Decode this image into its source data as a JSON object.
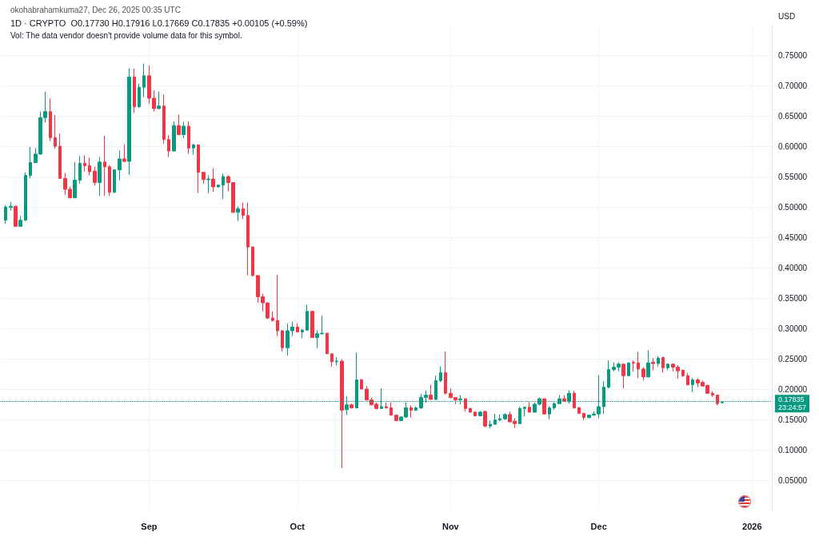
{
  "chart_data": {
    "type": "candlestick",
    "title": "1D · CRYPTO  O0.17730 H0.17916 L0.17669 C0.17835 +0.00105 (+0.59%)",
    "subtitle": "Vol: The data vendor doesn't provide volume data for this symbol.",
    "annotations": [
      "okohabrahamkuma27, Dec 26, 2025 00:35 UTC"
    ],
    "ylabel": "USD",
    "x": [
      "2025-08-03",
      "2025-08-04",
      "2025-08-05",
      "2025-08-06",
      "2025-08-07",
      "2025-08-08",
      "2025-08-09",
      "2025-08-10",
      "2025-08-11",
      "2025-08-12",
      "2025-08-13",
      "2025-08-14",
      "2025-08-15",
      "2025-08-16",
      "2025-08-17",
      "2025-08-18",
      "2025-08-19",
      "2025-08-20",
      "2025-08-21",
      "2025-08-22",
      "2025-08-23",
      "2025-08-24",
      "2025-08-25",
      "2025-08-26",
      "2025-08-27",
      "2025-08-28",
      "2025-08-29",
      "2025-08-30",
      "2025-08-31",
      "2025-09-01",
      "2025-09-02",
      "2025-09-03",
      "2025-09-04",
      "2025-09-05",
      "2025-09-06",
      "2025-09-07",
      "2025-09-08",
      "2025-09-09",
      "2025-09-10",
      "2025-09-11",
      "2025-09-12",
      "2025-09-13",
      "2025-09-14",
      "2025-09-15",
      "2025-09-16",
      "2025-09-17",
      "2025-09-18",
      "2025-09-19",
      "2025-09-20",
      "2025-09-21",
      "2025-09-22",
      "2025-09-23",
      "2025-09-24",
      "2025-09-25",
      "2025-09-26",
      "2025-09-27",
      "2025-09-28",
      "2025-09-29",
      "2025-09-30",
      "2025-10-01",
      "2025-10-02",
      "2025-10-03",
      "2025-10-04",
      "2025-10-05",
      "2025-10-06",
      "2025-10-07",
      "2025-10-08",
      "2025-10-09",
      "2025-10-10",
      "2025-10-11",
      "2025-10-12",
      "2025-10-13",
      "2025-10-14",
      "2025-10-15",
      "2025-10-16",
      "2025-10-17",
      "2025-10-18",
      "2025-10-19",
      "2025-10-20",
      "2025-10-21",
      "2025-10-22",
      "2025-10-23",
      "2025-10-24",
      "2025-10-25",
      "2025-10-26",
      "2025-10-27",
      "2025-10-28",
      "2025-10-29",
      "2025-10-30",
      "2025-10-31",
      "2025-11-01",
      "2025-11-02",
      "2025-11-03",
      "2025-11-04",
      "2025-11-05",
      "2025-11-06",
      "2025-11-07",
      "2025-11-08",
      "2025-11-09",
      "2025-11-10",
      "2025-11-11",
      "2025-11-12",
      "2025-11-13",
      "2025-11-14",
      "2025-11-15",
      "2025-11-16",
      "2025-11-17",
      "2025-11-18",
      "2025-11-19",
      "2025-11-20",
      "2025-11-21",
      "2025-11-22",
      "2025-11-23",
      "2025-11-24",
      "2025-11-25",
      "2025-11-26",
      "2025-11-27",
      "2025-11-28",
      "2025-11-29",
      "2025-11-30",
      "2025-12-01",
      "2025-12-02",
      "2025-12-03",
      "2025-12-04",
      "2025-12-05",
      "2025-12-06",
      "2025-12-07",
      "2025-12-08",
      "2025-12-09",
      "2025-12-10",
      "2025-12-11",
      "2025-12-12",
      "2025-12-13",
      "2025-12-14",
      "2025-12-15",
      "2025-12-16",
      "2025-12-17",
      "2025-12-18",
      "2025-12-19",
      "2025-12-20",
      "2025-12-21",
      "2025-12-22",
      "2025-12-23",
      "2025-12-24",
      "2025-12-25",
      "2025-12-26"
    ],
    "ohlc": [
      [
        0.478,
        0.503,
        0.472,
        0.5
      ],
      [
        0.499,
        0.508,
        0.494,
        0.501
      ],
      [
        0.501,
        0.502,
        0.467,
        0.468
      ],
      [
        0.468,
        0.485,
        0.467,
        0.478
      ],
      [
        0.478,
        0.557,
        0.477,
        0.552
      ],
      [
        0.552,
        0.599,
        0.547,
        0.573
      ],
      [
        0.573,
        0.597,
        0.572,
        0.587
      ],
      [
        0.587,
        0.657,
        0.586,
        0.647
      ],
      [
        0.647,
        0.69,
        0.639,
        0.657
      ],
      [
        0.657,
        0.679,
        0.608,
        0.614
      ],
      [
        0.614,
        0.651,
        0.596,
        0.6
      ],
      [
        0.6,
        0.621,
        0.546,
        0.547
      ],
      [
        0.547,
        0.556,
        0.52,
        0.529
      ],
      [
        0.529,
        0.533,
        0.514,
        0.515
      ],
      [
        0.515,
        0.574,
        0.514,
        0.544
      ],
      [
        0.544,
        0.584,
        0.538,
        0.572
      ],
      [
        0.572,
        0.585,
        0.558,
        0.568
      ],
      [
        0.568,
        0.581,
        0.552,
        0.558
      ],
      [
        0.559,
        0.566,
        0.535,
        0.54
      ],
      [
        0.54,
        0.582,
        0.518,
        0.574
      ],
      [
        0.574,
        0.617,
        0.518,
        0.566
      ],
      [
        0.566,
        0.569,
        0.518,
        0.524
      ],
      [
        0.524,
        0.562,
        0.523,
        0.561
      ],
      [
        0.561,
        0.593,
        0.544,
        0.579
      ],
      [
        0.579,
        0.603,
        0.574,
        0.575
      ],
      [
        0.575,
        0.728,
        0.553,
        0.714
      ],
      [
        0.714,
        0.728,
        0.655,
        0.665
      ],
      [
        0.665,
        0.703,
        0.663,
        0.697
      ],
      [
        0.697,
        0.736,
        0.681,
        0.716
      ],
      [
        0.716,
        0.733,
        0.67,
        0.679
      ],
      [
        0.679,
        0.692,
        0.657,
        0.662
      ],
      [
        0.662,
        0.69,
        0.661,
        0.666
      ],
      [
        0.666,
        0.685,
        0.604,
        0.611
      ],
      [
        0.611,
        0.618,
        0.582,
        0.592
      ],
      [
        0.592,
        0.641,
        0.591,
        0.634
      ],
      [
        0.634,
        0.652,
        0.619,
        0.619
      ],
      [
        0.619,
        0.64,
        0.613,
        0.633
      ],
      [
        0.633,
        0.641,
        0.587,
        0.597
      ],
      [
        0.597,
        0.604,
        0.586,
        0.602
      ],
      [
        0.602,
        0.602,
        0.523,
        0.557
      ],
      [
        0.557,
        0.557,
        0.538,
        0.545
      ],
      [
        0.545,
        0.552,
        0.523,
        0.546
      ],
      [
        0.546,
        0.564,
        0.525,
        0.533
      ],
      [
        0.533,
        0.536,
        0.532,
        0.536
      ],
      [
        0.536,
        0.555,
        0.513,
        0.55
      ],
      [
        0.55,
        0.552,
        0.526,
        0.54
      ],
      [
        0.54,
        0.54,
        0.49,
        0.491
      ],
      [
        0.491,
        0.501,
        0.477,
        0.497
      ],
      [
        0.497,
        0.507,
        0.48,
        0.486
      ],
      [
        0.486,
        0.507,
        0.387,
        0.434
      ],
      [
        0.434,
        0.435,
        0.385,
        0.387
      ],
      [
        0.387,
        0.387,
        0.342,
        0.352
      ],
      [
        0.352,
        0.357,
        0.328,
        0.342
      ],
      [
        0.342,
        0.342,
        0.315,
        0.317
      ],
      [
        0.317,
        0.328,
        0.311,
        0.313
      ],
      [
        0.313,
        0.388,
        0.287,
        0.296
      ],
      [
        0.296,
        0.297,
        0.262,
        0.268
      ],
      [
        0.268,
        0.308,
        0.255,
        0.296
      ],
      [
        0.296,
        0.311,
        0.287,
        0.302
      ],
      [
        0.302,
        0.308,
        0.293,
        0.294
      ],
      [
        0.294,
        0.299,
        0.284,
        0.297
      ],
      [
        0.297,
        0.339,
        0.296,
        0.328
      ],
      [
        0.328,
        0.328,
        0.284,
        0.285
      ],
      [
        0.285,
        0.297,
        0.267,
        0.291
      ],
      [
        0.291,
        0.321,
        0.29,
        0.292
      ],
      [
        0.292,
        0.292,
        0.258,
        0.258
      ],
      [
        0.258,
        0.259,
        0.237,
        0.245
      ],
      [
        0.245,
        0.252,
        0.239,
        0.246
      ],
      [
        0.246,
        0.249,
        0.07,
        0.165
      ],
      [
        0.166,
        0.188,
        0.157,
        0.174
      ],
      [
        0.174,
        0.176,
        0.168,
        0.169
      ],
      [
        0.169,
        0.26,
        0.168,
        0.215
      ],
      [
        0.215,
        0.217,
        0.2,
        0.2
      ],
      [
        0.2,
        0.205,
        0.181,
        0.182
      ],
      [
        0.182,
        0.186,
        0.173,
        0.174
      ],
      [
        0.175,
        0.178,
        0.166,
        0.168
      ],
      [
        0.168,
        0.201,
        0.167,
        0.171
      ],
      [
        0.171,
        0.178,
        0.168,
        0.169
      ],
      [
        0.169,
        0.178,
        0.156,
        0.157
      ],
      [
        0.157,
        0.157,
        0.147,
        0.148
      ],
      [
        0.148,
        0.155,
        0.147,
        0.154
      ],
      [
        0.154,
        0.178,
        0.152,
        0.169
      ],
      [
        0.169,
        0.173,
        0.153,
        0.165
      ],
      [
        0.165,
        0.171,
        0.164,
        0.169
      ],
      [
        0.169,
        0.192,
        0.167,
        0.186
      ],
      [
        0.186,
        0.198,
        0.178,
        0.19
      ],
      [
        0.19,
        0.207,
        0.182,
        0.183
      ],
      [
        0.183,
        0.222,
        0.182,
        0.214
      ],
      [
        0.214,
        0.237,
        0.211,
        0.227
      ],
      [
        0.227,
        0.262,
        0.191,
        0.193
      ],
      [
        0.193,
        0.201,
        0.185,
        0.186
      ],
      [
        0.186,
        0.186,
        0.175,
        0.182
      ],
      [
        0.182,
        0.19,
        0.175,
        0.184
      ],
      [
        0.184,
        0.184,
        0.163,
        0.168
      ],
      [
        0.168,
        0.169,
        0.161,
        0.162
      ],
      [
        0.162,
        0.163,
        0.155,
        0.156
      ],
      [
        0.156,
        0.164,
        0.155,
        0.162
      ],
      [
        0.163,
        0.164,
        0.137,
        0.139
      ],
      [
        0.139,
        0.148,
        0.135,
        0.142
      ],
      [
        0.142,
        0.159,
        0.141,
        0.149
      ],
      [
        0.149,
        0.158,
        0.147,
        0.151
      ],
      [
        0.151,
        0.16,
        0.149,
        0.158
      ],
      [
        0.158,
        0.163,
        0.145,
        0.146
      ],
      [
        0.147,
        0.152,
        0.136,
        0.143
      ],
      [
        0.143,
        0.171,
        0.143,
        0.168
      ],
      [
        0.168,
        0.171,
        0.155,
        0.17
      ],
      [
        0.17,
        0.179,
        0.161,
        0.162
      ],
      [
        0.162,
        0.178,
        0.161,
        0.175
      ],
      [
        0.175,
        0.186,
        0.173,
        0.184
      ],
      [
        0.184,
        0.184,
        0.158,
        0.159
      ],
      [
        0.159,
        0.172,
        0.15,
        0.169
      ],
      [
        0.169,
        0.178,
        0.166,
        0.176
      ],
      [
        0.176,
        0.19,
        0.175,
        0.184
      ],
      [
        0.184,
        0.19,
        0.18,
        0.18
      ],
      [
        0.18,
        0.198,
        0.176,
        0.193
      ],
      [
        0.193,
        0.197,
        0.168,
        0.169
      ],
      [
        0.169,
        0.171,
        0.159,
        0.16
      ],
      [
        0.16,
        0.161,
        0.149,
        0.153
      ],
      [
        0.153,
        0.157,
        0.152,
        0.157
      ],
      [
        0.157,
        0.163,
        0.156,
        0.159
      ],
      [
        0.159,
        0.223,
        0.152,
        0.171
      ],
      [
        0.171,
        0.213,
        0.159,
        0.203
      ],
      [
        0.203,
        0.247,
        0.201,
        0.232
      ],
      [
        0.232,
        0.244,
        0.229,
        0.236
      ],
      [
        0.236,
        0.244,
        0.229,
        0.241
      ],
      [
        0.241,
        0.241,
        0.201,
        0.222
      ],
      [
        0.222,
        0.244,
        0.222,
        0.243
      ],
      [
        0.244,
        0.247,
        0.229,
        0.243
      ],
      [
        0.243,
        0.261,
        0.218,
        0.233
      ],
      [
        0.233,
        0.236,
        0.214,
        0.22
      ],
      [
        0.22,
        0.264,
        0.219,
        0.243
      ],
      [
        0.244,
        0.251,
        0.231,
        0.242
      ],
      [
        0.242,
        0.254,
        0.237,
        0.251
      ],
      [
        0.252,
        0.253,
        0.227,
        0.235
      ],
      [
        0.235,
        0.242,
        0.231,
        0.241
      ],
      [
        0.241,
        0.242,
        0.229,
        0.236
      ],
      [
        0.236,
        0.239,
        0.217,
        0.23
      ],
      [
        0.231,
        0.232,
        0.22,
        0.222
      ],
      [
        0.222,
        0.226,
        0.206,
        0.207
      ],
      [
        0.207,
        0.218,
        0.195,
        0.215
      ],
      [
        0.215,
        0.218,
        0.203,
        0.21
      ],
      [
        0.211,
        0.214,
        0.204,
        0.205
      ],
      [
        0.206,
        0.207,
        0.192,
        0.193
      ],
      [
        0.193,
        0.196,
        0.187,
        0.19
      ],
      [
        0.19,
        0.191,
        0.173,
        0.176
      ],
      [
        0.1773,
        0.17916,
        0.17669,
        0.17835
      ]
    ],
    "colors": [
      "#089981",
      "#089981",
      "#f23645",
      "#089981",
      "#089981",
      "#089981",
      "#089981",
      "#089981",
      "#089981",
      "#f23645",
      "#f23645",
      "#f23645",
      "#f23645",
      "#f23645",
      "#089981",
      "#089981",
      "#f23645",
      "#f23645",
      "#f23645",
      "#089981",
      "#f23645",
      "#f23645",
      "#089981",
      "#089981",
      "#f23645",
      "#089981",
      "#f23645",
      "#089981",
      "#089981",
      "#f23645",
      "#f23645",
      "#089981",
      "#f23645",
      "#f23645",
      "#089981",
      "#f23645",
      "#089981",
      "#f23645",
      "#089981",
      "#f23645",
      "#f23645",
      "#089981",
      "#f23645",
      "#089981",
      "#089981",
      "#f23645",
      "#f23645",
      "#089981",
      "#f23645",
      "#f23645",
      "#f23645",
      "#f23645",
      "#f23645",
      "#f23645",
      "#f23645",
      "#f23645",
      "#f23645",
      "#089981",
      "#089981",
      "#f23645",
      "#089981",
      "#089981",
      "#f23645",
      "#089981",
      "#089981",
      "#f23645",
      "#f23645",
      "#089981",
      "#f23645",
      "#089981",
      "#f23645",
      "#089981",
      "#f23645",
      "#f23645",
      "#f23645",
      "#f23645",
      "#089981",
      "#f23645",
      "#f23645",
      "#f23645",
      "#089981",
      "#089981",
      "#f23645",
      "#089981",
      "#089981",
      "#089981",
      "#f23645",
      "#089981",
      "#089981",
      "#f23645",
      "#f23645",
      "#f23645",
      "#089981",
      "#f23645",
      "#f23645",
      "#f23645",
      "#089981",
      "#f23645",
      "#089981",
      "#089981",
      "#089981",
      "#089981",
      "#f23645",
      "#f23645",
      "#089981",
      "#089981",
      "#f23645",
      "#089981",
      "#089981",
      "#f23645",
      "#089981",
      "#089981",
      "#089981",
      "#f23645",
      "#089981",
      "#f23645",
      "#f23645",
      "#f23645",
      "#089981",
      "#089981",
      "#089981",
      "#089981",
      "#089981",
      "#089981",
      "#089981",
      "#f23645",
      "#089981",
      "#f23645",
      "#f23645",
      "#f23645",
      "#089981",
      "#f23645",
      "#089981",
      "#f23645",
      "#089981",
      "#f23645",
      "#f23645",
      "#f23645",
      "#f23645",
      "#089981",
      "#f23645",
      "#f23645",
      "#f23645",
      "#f23645",
      "#f23645",
      "#089981"
    ],
    "xlim": [
      "2025-08-02",
      "2026-01-05"
    ],
    "xticks": [
      {
        "value": "2025-09-01",
        "label": "Sep"
      },
      {
        "value": "2025-10-01",
        "label": "Oct"
      },
      {
        "value": "2025-11-01",
        "label": "Nov"
      },
      {
        "value": "2025-12-01",
        "label": "Dec"
      },
      {
        "value": "2026-01-01",
        "label": "2026"
      }
    ],
    "ylim": [
      0,
      0.8
    ],
    "yticks": [
      {
        "value": 0.05,
        "label": "0.05000"
      },
      {
        "value": 0.1,
        "label": "0.10000"
      },
      {
        "value": 0.15,
        "label": "0.15000"
      },
      {
        "value": 0.2,
        "label": "0.20000"
      },
      {
        "value": 0.25,
        "label": "0.25000"
      },
      {
        "value": 0.3,
        "label": "0.30000"
      },
      {
        "value": 0.35,
        "label": "0.35000"
      },
      {
        "value": 0.4,
        "label": "0.40000"
      },
      {
        "value": 0.45,
        "label": "0.45000"
      },
      {
        "value": 0.5,
        "label": "0.50000"
      },
      {
        "value": 0.55,
        "label": "0.55000"
      },
      {
        "value": 0.6,
        "label": "0.60000"
      },
      {
        "value": 0.65,
        "label": "0.65000"
      },
      {
        "value": 0.7,
        "label": "0.70000"
      },
      {
        "value": 0.75,
        "label": "0.75000"
      }
    ],
    "ref_lines": [
      {
        "axis": "y",
        "value": 0.17835,
        "label": "0.17835\n23:24:57",
        "color": "#089981",
        "line_style": "dotted"
      }
    ],
    "grid": true
  }
}
